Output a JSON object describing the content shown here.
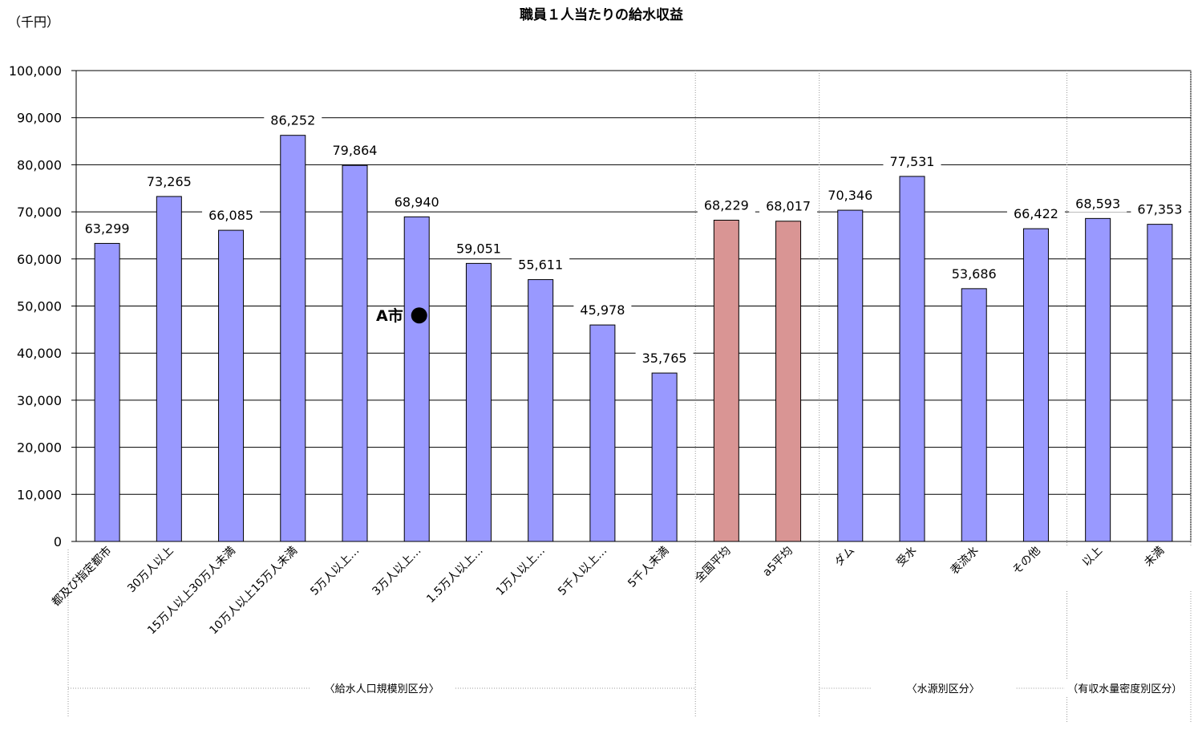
{
  "chart_data": {
    "type": "bar",
    "title": "職員１人当たりの給水収益",
    "unit_label": "（千円）",
    "ylim": [
      0,
      100000
    ],
    "yticks": [
      {
        "value": 0,
        "label": "0"
      },
      {
        "value": 10000,
        "label": "10,000"
      },
      {
        "value": 20000,
        "label": "20,000"
      },
      {
        "value": 30000,
        "label": "30,000"
      },
      {
        "value": 40000,
        "label": "40,000"
      },
      {
        "value": 50000,
        "label": "50,000"
      },
      {
        "value": 60000,
        "label": "60,000"
      },
      {
        "value": 70000,
        "label": "70,000"
      },
      {
        "value": 80000,
        "label": "80,000"
      },
      {
        "value": 90000,
        "label": "90,000"
      },
      {
        "value": 100000,
        "label": "100,000"
      }
    ],
    "grid": true,
    "bars": [
      {
        "category": "都及び指定都市",
        "value": 63299,
        "label": "63,299",
        "color": "#9999ff"
      },
      {
        "category": "30万人以上",
        "value": 73265,
        "label": "73,265",
        "color": "#9999ff"
      },
      {
        "category": "15万人以上30万人未満",
        "value": 66085,
        "label": "66,085",
        "color": "#9999ff"
      },
      {
        "category": "10万人以上15万人未満",
        "value": 86252,
        "label": "86,252",
        "color": "#9999ff"
      },
      {
        "category": "5万人以上…",
        "value": 79864,
        "label": "79,864",
        "color": "#9999ff"
      },
      {
        "category": "3万人以上…",
        "value": 68940,
        "label": "68,940",
        "color": "#9999ff"
      },
      {
        "category": "1.5万人以上…",
        "value": 59051,
        "label": "59,051",
        "color": "#9999ff"
      },
      {
        "category": "1万人以上…",
        "value": 55611,
        "label": "55,611",
        "color": "#9999ff"
      },
      {
        "category": "5千人以上…",
        "value": 45978,
        "label": "45,978",
        "color": "#9999ff"
      },
      {
        "category": "5千人未満",
        "value": 35765,
        "label": "35,765",
        "color": "#9999ff"
      },
      {
        "category": "全国平均",
        "value": 68229,
        "label": "68,229",
        "color": "#d99594"
      },
      {
        "category": "a5平均",
        "value": 68017,
        "label": "68,017",
        "color": "#d99594"
      },
      {
        "category": "ダム",
        "value": 70346,
        "label": "70,346",
        "color": "#9999ff"
      },
      {
        "category": "受水",
        "value": 77531,
        "label": "77,531",
        "color": "#9999ff"
      },
      {
        "category": "表流水",
        "value": 53686,
        "label": "53,686",
        "color": "#9999ff"
      },
      {
        "category": "その他",
        "value": 66422,
        "label": "66,422",
        "color": "#9999ff"
      },
      {
        "category": "以上",
        "value": 68593,
        "label": "68,593",
        "color": "#9999ff"
      },
      {
        "category": "未満",
        "value": 67353,
        "label": "67,353",
        "color": "#9999ff"
      }
    ],
    "groups": [
      {
        "label": "〈給水人口規模別区分〉",
        "first": 0,
        "last": 9
      },
      {
        "label": "〈水源別区分〉",
        "first": 12,
        "last": 15
      },
      {
        "label": "（有収水量密度別区分）",
        "first": 16,
        "last": 17
      }
    ],
    "annotation": {
      "label": "A市",
      "value": 48000,
      "bar_index": 5
    }
  }
}
